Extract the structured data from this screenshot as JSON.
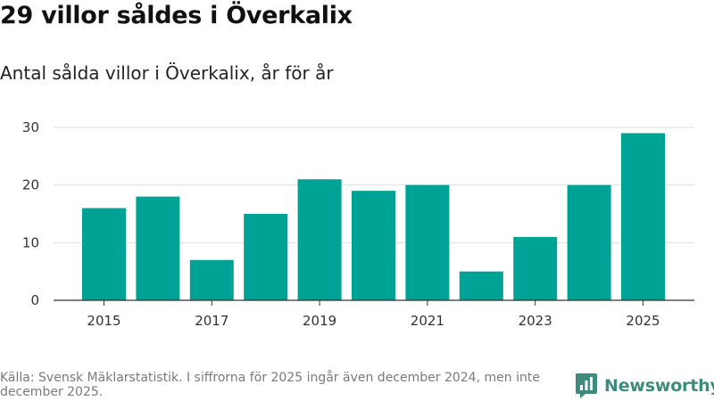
{
  "header": {
    "title": "29 villor såldes i Överkalix",
    "subtitle": "Antal sålda villor i Överkalix, år för år"
  },
  "chart_data": {
    "type": "bar",
    "title": "29 villor såldes i Överkalix",
    "subtitle": "Antal sålda villor i Överkalix, år för år",
    "xlabel": "",
    "ylabel": "",
    "categories": [
      "2015",
      "2016",
      "2017",
      "2018",
      "2019",
      "2020",
      "2021",
      "2022",
      "2023",
      "2024",
      "2025"
    ],
    "values": [
      16,
      18,
      7,
      15,
      21,
      19,
      20,
      5,
      11,
      20,
      29
    ],
    "x_tick_labels": [
      "2015",
      "2017",
      "2019",
      "2021",
      "2023",
      "2025"
    ],
    "y_ticks": [
      0,
      10,
      20,
      30
    ],
    "ylim": [
      0,
      30
    ],
    "grid": true,
    "bar_color": "#00a295"
  },
  "footer": {
    "source_note": "Källa: Svensk Mäklarstatistik. I siffrorna för 2025 ingår även december 2024, men inte december 2025.",
    "brand": "Newsworthy",
    "brand_icon": "bar-chart-logo-icon",
    "brand_color": "#3f8c7c"
  }
}
